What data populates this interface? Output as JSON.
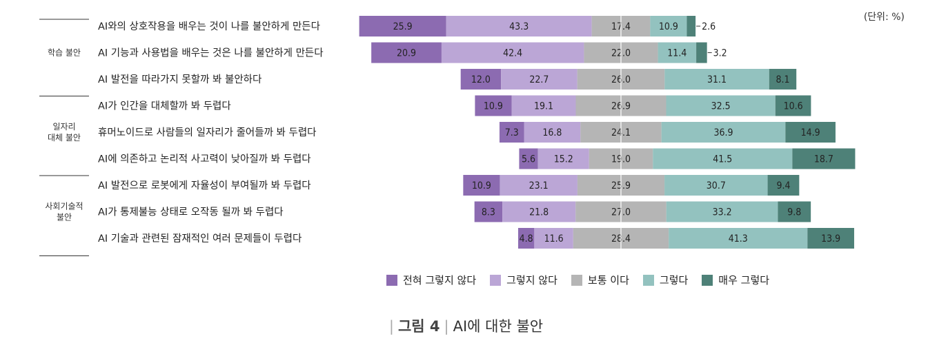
{
  "unit_label": "(단위: %)",
  "figure_caption": {
    "label": "그림 4",
    "title": "AI에 대한 불안"
  },
  "colors": [
    "#8c6bb1",
    "#bba6d6",
    "#b5b5b5",
    "#93c2bf",
    "#4e8178"
  ],
  "chart_data": {
    "type": "bar",
    "subtype": "diverging-stacked-horizontal",
    "legend_position": "bottom",
    "legend": [
      "전혀 그렇지 않다",
      "그렇지 않다",
      "보통 이다",
      "그렇다",
      "매우 그렇다"
    ],
    "groups": [
      {
        "name": "학습 불안",
        "rows": [
          0,
          1,
          2
        ]
      },
      {
        "name": "일자리\n대체 불안",
        "rows": [
          3,
          4,
          5
        ]
      },
      {
        "name": "사회기술적\n불안",
        "rows": [
          6,
          7,
          8
        ]
      }
    ],
    "categories": [
      "AI와의 상호작용을 배우는 것이 나를 불안하게 만든다",
      "AI 기능과 사용법을 배우는 것은 나를 불안하게 만든다",
      "AI 발전을 따라가지 못할까 봐 불안하다",
      "AI가 인간을 대체할까 봐 두렵다",
      "휴머노이드로 사람들의 일자리가 줄어들까 봐 두렵다",
      "AI에 의존하고 논리적 사고력이 낮아질까 봐 두렵다",
      "AI 발전으로 로봇에게 자율성이 부여될까 봐 두렵다",
      "AI가 통제불능 상태로 오작동 될까 봐 두렵다",
      "AI 기술과 관련된 잠재적인 여러 문제들이 두렵다"
    ],
    "values": [
      [
        25.9,
        43.3,
        17.4,
        10.9,
        2.6
      ],
      [
        20.9,
        42.4,
        22.0,
        11.4,
        3.2
      ],
      [
        12.0,
        22.7,
        26.0,
        31.1,
        8.1
      ],
      [
        10.9,
        19.1,
        26.9,
        32.5,
        10.6
      ],
      [
        7.3,
        16.8,
        24.1,
        36.9,
        14.9
      ],
      [
        5.6,
        15.2,
        19.0,
        41.5,
        18.7
      ],
      [
        10.9,
        23.1,
        25.9,
        30.7,
        9.4
      ],
      [
        8.3,
        21.8,
        27.0,
        33.2,
        9.8
      ],
      [
        4.8,
        11.6,
        28.4,
        41.3,
        13.9
      ]
    ]
  }
}
